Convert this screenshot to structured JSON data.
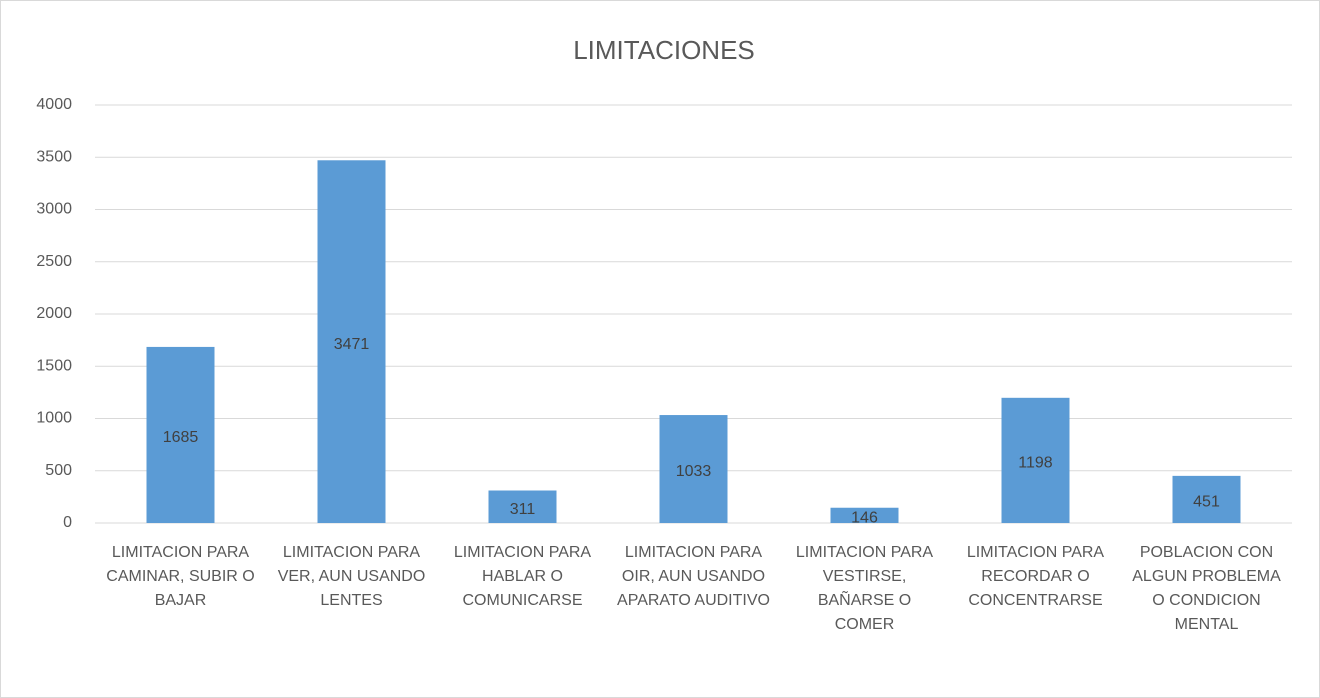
{
  "chart_data": {
    "type": "bar",
    "title": "LIMITACIONES",
    "categories": [
      "LIMITACION PARA CAMINAR, SUBIR O BAJAR",
      "LIMITACION PARA VER, AUN USANDO LENTES",
      "LIMITACION PARA HABLAR O COMUNICARSE",
      "LIMITACION PARA OIR, AUN USANDO APARATO AUDITIVO",
      "LIMITACION PARA VESTIRSE, BAÑARSE O COMER",
      "LIMITACION PARA RECORDAR O CONCENTRARSE",
      "POBLACION CON ALGUN PROBLEMA O CONDICION MENTAL"
    ],
    "values": [
      1685,
      3471,
      311,
      1033,
      146,
      1198,
      451
    ],
    "color": "#5b9bd5",
    "ylim": [
      0,
      4000
    ],
    "yticks": [
      0,
      500,
      1000,
      1500,
      2000,
      2500,
      3000,
      3500,
      4000
    ],
    "grid": true
  }
}
